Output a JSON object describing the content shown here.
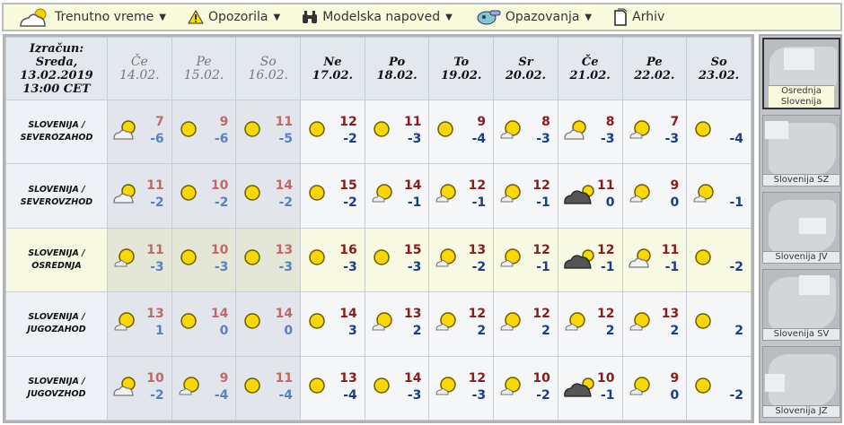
{
  "nav": [
    {
      "label": "Trenutno vreme",
      "icon": "cloud-sun-icon",
      "dropdown": true
    },
    {
      "label": "Opozorila",
      "icon": "warning-icon",
      "dropdown": true
    },
    {
      "label": "Modelska napoved",
      "icon": "binoculars-icon",
      "dropdown": true
    },
    {
      "label": "Opazovanja",
      "icon": "observer-icon",
      "dropdown": true
    },
    {
      "label": "Arhiv",
      "icon": "document-icon",
      "dropdown": false
    }
  ],
  "header": {
    "calc_lines": [
      "Izračun:",
      "Sreda,",
      "13.02.2019",
      "13:00 CET"
    ]
  },
  "days": [
    {
      "day": "Če",
      "date": "14.02.",
      "past": true
    },
    {
      "day": "Pe",
      "date": "15.02.",
      "past": true
    },
    {
      "day": "So",
      "date": "16.02.",
      "past": true
    },
    {
      "day": "Ne",
      "date": "17.02.",
      "past": false
    },
    {
      "day": "Po",
      "date": "18.02.",
      "past": false
    },
    {
      "day": "To",
      "date": "19.02.",
      "past": false
    },
    {
      "day": "Sr",
      "date": "20.02.",
      "past": false
    },
    {
      "day": "Če",
      "date": "21.02.",
      "past": false
    },
    {
      "day": "Pe",
      "date": "22.02.",
      "past": false
    },
    {
      "day": "So",
      "date": "23.02.",
      "past": false
    }
  ],
  "rows": [
    {
      "region": [
        "SLOVENIJA /",
        "SEVEROZAHOD"
      ],
      "selected": false,
      "cells": [
        {
          "icon": "mostly-cloudy",
          "max": "7",
          "min": "-6"
        },
        {
          "icon": "sunny",
          "max": "9",
          "min": "-6"
        },
        {
          "icon": "sunny",
          "max": "11",
          "min": "-5"
        },
        {
          "icon": "sunny",
          "max": "12",
          "min": "-2"
        },
        {
          "icon": "sunny",
          "max": "11",
          "min": "-3"
        },
        {
          "icon": "sunny",
          "max": "9",
          "min": "-4"
        },
        {
          "icon": "partly-cloudy",
          "max": "8",
          "min": "-3"
        },
        {
          "icon": "mostly-cloudy",
          "max": "8",
          "min": "-3"
        },
        {
          "icon": "partly-cloudy",
          "max": "7",
          "min": "-3"
        },
        {
          "icon": "sunny",
          "max": "",
          "min": "-4"
        }
      ]
    },
    {
      "region": [
        "SLOVENIJA /",
        "SEVEROVZHOD"
      ],
      "selected": false,
      "cells": [
        {
          "icon": "mostly-cloudy",
          "max": "11",
          "min": "-2"
        },
        {
          "icon": "sunny",
          "max": "10",
          "min": "-2"
        },
        {
          "icon": "sunny",
          "max": "14",
          "min": "-2"
        },
        {
          "icon": "sunny",
          "max": "15",
          "min": "-2"
        },
        {
          "icon": "partly-cloudy",
          "max": "14",
          "min": "-1"
        },
        {
          "icon": "partly-cloudy",
          "max": "12",
          "min": "-1"
        },
        {
          "icon": "partly-cloudy",
          "max": "12",
          "min": "-1"
        },
        {
          "icon": "overcast",
          "max": "11",
          "min": "0"
        },
        {
          "icon": "partly-cloudy",
          "max": "9",
          "min": "0"
        },
        {
          "icon": "partly-cloudy",
          "max": "",
          "min": "-1"
        }
      ]
    },
    {
      "region": [
        "SLOVENIJA /",
        "OSREDNJA"
      ],
      "selected": true,
      "cells": [
        {
          "icon": "partly-cloudy",
          "max": "11",
          "min": "-3"
        },
        {
          "icon": "sunny",
          "max": "10",
          "min": "-3"
        },
        {
          "icon": "sunny",
          "max": "13",
          "min": "-3"
        },
        {
          "icon": "sunny",
          "max": "16",
          "min": "-3"
        },
        {
          "icon": "sunny",
          "max": "15",
          "min": "-3"
        },
        {
          "icon": "partly-cloudy",
          "max": "13",
          "min": "-2"
        },
        {
          "icon": "partly-cloudy",
          "max": "12",
          "min": "-1"
        },
        {
          "icon": "overcast",
          "max": "12",
          "min": "-1"
        },
        {
          "icon": "mostly-cloudy",
          "max": "11",
          "min": "-1"
        },
        {
          "icon": "sunny",
          "max": "",
          "min": "-2"
        }
      ]
    },
    {
      "region": [
        "SLOVENIJA /",
        "JUGOZAHOD"
      ],
      "selected": false,
      "cells": [
        {
          "icon": "partly-cloudy",
          "max": "13",
          "min": "1"
        },
        {
          "icon": "sunny",
          "max": "14",
          "min": "0"
        },
        {
          "icon": "sunny",
          "max": "14",
          "min": "0"
        },
        {
          "icon": "sunny",
          "max": "14",
          "min": "3"
        },
        {
          "icon": "partly-cloudy",
          "max": "13",
          "min": "2"
        },
        {
          "icon": "partly-cloudy",
          "max": "12",
          "min": "2"
        },
        {
          "icon": "partly-cloudy",
          "max": "12",
          "min": "2"
        },
        {
          "icon": "partly-cloudy",
          "max": "12",
          "min": "2"
        },
        {
          "icon": "partly-cloudy",
          "max": "13",
          "min": "2"
        },
        {
          "icon": "sunny",
          "max": "",
          "min": "2"
        }
      ]
    },
    {
      "region": [
        "SLOVENIJA /",
        "JUGOVZHOD"
      ],
      "selected": false,
      "cells": [
        {
          "icon": "mostly-cloudy",
          "max": "10",
          "min": "-2"
        },
        {
          "icon": "partly-cloudy",
          "max": "9",
          "min": "-4"
        },
        {
          "icon": "sunny",
          "max": "11",
          "min": "-4"
        },
        {
          "icon": "sunny",
          "max": "13",
          "min": "-4"
        },
        {
          "icon": "sunny",
          "max": "14",
          "min": "-3"
        },
        {
          "icon": "partly-cloudy",
          "max": "12",
          "min": "-3"
        },
        {
          "icon": "partly-cloudy",
          "max": "10",
          "min": "-2"
        },
        {
          "icon": "overcast",
          "max": "10",
          "min": "-1"
        },
        {
          "icon": "partly-cloudy",
          "max": "9",
          "min": "0"
        },
        {
          "icon": "sunny",
          "max": "",
          "min": "-2"
        }
      ]
    }
  ],
  "maps": [
    {
      "label": "Osrednja Slovenija",
      "active": true
    },
    {
      "label": "Slovenija SZ",
      "active": false
    },
    {
      "label": "Slovenija JV",
      "active": false
    },
    {
      "label": "Slovenija SV",
      "active": false
    },
    {
      "label": "Slovenija JZ",
      "active": false
    }
  ],
  "colors": {
    "max": "#8b1a1a",
    "min": "#1a3c8b",
    "nav_bg": "#fafbdc",
    "selected_row": "#f7f9e3"
  }
}
